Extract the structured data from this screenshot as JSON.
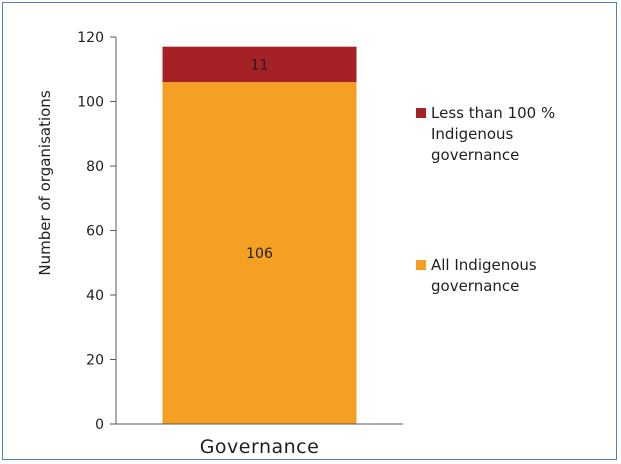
{
  "chart_data": {
    "type": "bar",
    "stacked": true,
    "categories": [
      "Governance"
    ],
    "series": [
      {
        "name": "All Indigenous governance",
        "values": [
          106
        ],
        "color": "#f5a023"
      },
      {
        "name": "Less than 100 % Indigenous governance",
        "values": [
          11
        ],
        "color": "#a52126"
      }
    ],
    "data_labels": [
      "106",
      "11"
    ],
    "ylabel": "Number of organisations",
    "ylim": [
      0,
      120
    ],
    "yticks": [
      0,
      20,
      40,
      60,
      80,
      100,
      120
    ],
    "grid": false,
    "legend": {
      "position": "right",
      "items": [
        {
          "lines": [
            "Less than 100 %",
            "Indigenous",
            "governance"
          ],
          "color": "#a52126"
        },
        {
          "lines": [
            "All Indigenous",
            "governance"
          ],
          "color": "#f5a023"
        }
      ]
    },
    "border_color": "#4f81bd"
  }
}
